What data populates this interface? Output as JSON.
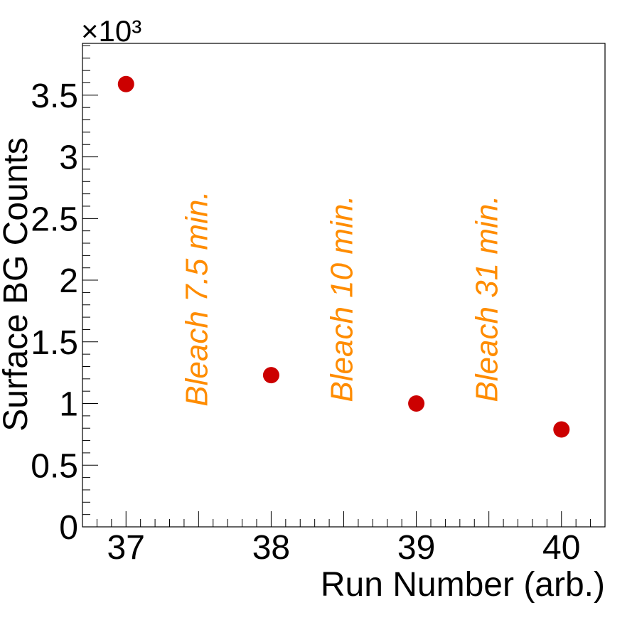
{
  "chart_data": {
    "type": "scatter",
    "xlabel": "Run Number (arb.)",
    "ylabel": "Surface BG Counts",
    "y_multiplier_label": "×10³",
    "xlim": [
      36.7,
      40.3
    ],
    "ylim": [
      0,
      3.92
    ],
    "x_ticks": [
      37,
      38,
      39,
      40
    ],
    "y_ticks": [
      0,
      0.5,
      1,
      1.5,
      2,
      2.5,
      3,
      3.5
    ],
    "x_tick_labels": [
      "37",
      "38",
      "39",
      "40"
    ],
    "y_tick_labels": [
      "0",
      "0.5",
      "1",
      "1.5",
      "2",
      "2.5",
      "3",
      "3.5"
    ],
    "grid": false,
    "legend": false,
    "series": [
      {
        "color": "#cc0000",
        "x": [
          37,
          38,
          39,
          40
        ],
        "y": [
          3.59,
          1.23,
          1.0,
          0.79
        ]
      }
    ],
    "annotations": [
      {
        "text": "Bleach 7.5 min.",
        "x": 37.5,
        "y": 1.85,
        "color": "#ff8c00"
      },
      {
        "text": "Bleach 10 min.",
        "x": 38.5,
        "y": 1.85,
        "color": "#ff8c00"
      },
      {
        "text": "Bleach 31 min.",
        "x": 39.5,
        "y": 1.85,
        "color": "#ff8c00"
      }
    ]
  }
}
